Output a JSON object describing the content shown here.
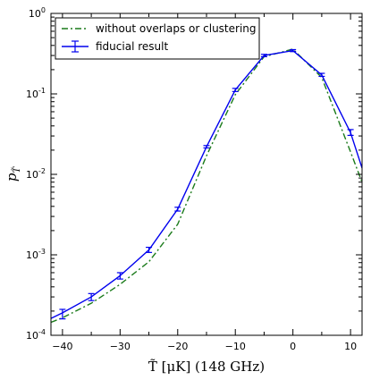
{
  "chart_data": {
    "type": "line",
    "xlabel": "T̃ [μK] (148 GHz)",
    "ylabel": "p",
    "ylabel_sub": "T̃",
    "xlim": [
      -42,
      12
    ],
    "ylim": [
      0.0001,
      1
    ],
    "yscale": "log",
    "x_ticks": [
      -40,
      -30,
      -20,
      -10,
      0,
      10
    ],
    "x_tick_labels": [
      "−40",
      "−30",
      "−20",
      "−10",
      "0",
      "10"
    ],
    "y_ticks": [
      0.0001,
      0.001,
      0.01,
      0.1,
      1
    ],
    "y_tick_labels": [
      {
        "base": "10",
        "exp": "-4"
      },
      {
        "base": "10",
        "exp": "-3"
      },
      {
        "base": "10",
        "exp": "-2"
      },
      {
        "base": "10",
        "exp": "-1"
      },
      {
        "base": "10",
        "exp": "0"
      }
    ],
    "grid": false,
    "legend_position": "top-left",
    "series": [
      {
        "name": "without overlaps or clustering",
        "style": "dashdot",
        "color": "#1a7a1a",
        "x": [
          -42,
          -40,
          -35,
          -30,
          -25,
          -20,
          -15,
          -10,
          -5,
          0,
          5,
          10,
          12
        ],
        "y": [
          0.000145,
          0.000165,
          0.00025,
          0.00043,
          0.00082,
          0.0024,
          0.017,
          0.098,
          0.29,
          0.36,
          0.16,
          0.019,
          0.008
        ]
      },
      {
        "name": "fiducial result",
        "style": "solid-errorbars",
        "color": "#0000ee",
        "x": [
          -42,
          -40,
          -35,
          -30,
          -25,
          -20,
          -15,
          -10,
          -5,
          0,
          5,
          10,
          12
        ],
        "y": [
          0.000162,
          0.00019,
          0.0003,
          0.00055,
          0.00115,
          0.0037,
          0.022,
          0.112,
          0.3,
          0.345,
          0.172,
          0.033,
          0.012
        ],
        "yerr_lower": [
          null,
          0.00016,
          0.00027,
          0.0005,
          0.00107,
          0.0035,
          0.0213,
          0.107,
          0.29,
          0.335,
          0.165,
          0.0305,
          null
        ],
        "yerr_upper": [
          null,
          0.00021,
          0.00033,
          0.0006,
          0.00124,
          0.0039,
          0.0228,
          0.117,
          0.31,
          0.355,
          0.18,
          0.036,
          null
        ]
      }
    ]
  }
}
